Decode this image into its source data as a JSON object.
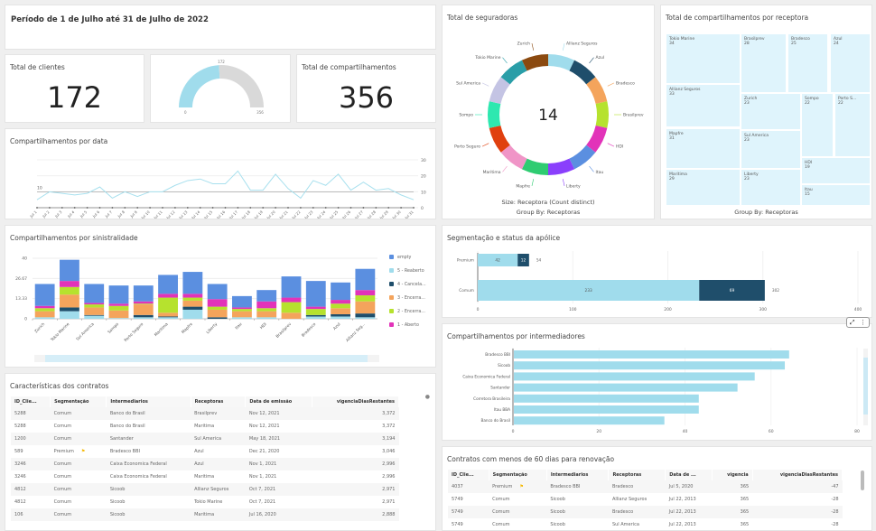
{
  "header": {
    "title": "Período  de 1 de Julho  até  31 de Julho de 2022"
  },
  "kpis": {
    "clientes_label": "Total de clientes",
    "clientes_value": "172",
    "compart_label": "Total de compartilhamentos",
    "compart_value": "356"
  },
  "gauge": {
    "value": 172,
    "max": 356,
    "value_label": "172",
    "min_label": "0",
    "max_label": "356",
    "fill_color": "#a0dcec",
    "rest_color": "#d9d9d9"
  },
  "chart_data": [
    {
      "id": "line",
      "type": "line",
      "title": "Compartilhamentos por data",
      "x": [
        "Jul 1",
        "Jul 2",
        "Jul 3",
        "Jul 4",
        "Jul 5",
        "Jul 6",
        "Jul 7",
        "Jul 8",
        "Jul 9",
        "Jul 10",
        "Jul 11",
        "Jul 12",
        "Jul 13",
        "Jul 14",
        "Jul 15",
        "Jul 16",
        "Jul 17",
        "Jul 18",
        "Jul 19",
        "Jul 20",
        "Jul 21",
        "Jul 22",
        "Jul 23",
        "Jul 24",
        "Jul 25",
        "Jul 26",
        "Jul 27",
        "Jul 28",
        "Jul 29",
        "Jul 30",
        "Jul 31"
      ],
      "values": [
        5,
        10,
        9,
        8,
        9,
        13,
        6,
        10,
        7,
        10,
        10,
        14,
        17,
        18,
        15,
        15,
        23,
        11,
        11,
        21,
        12,
        6,
        17,
        14,
        21,
        11,
        16,
        11,
        12,
        8,
        5
      ],
      "reference_line": {
        "value": 10,
        "label": "10"
      },
      "yticks": [
        0,
        10,
        20,
        30
      ],
      "ylim": [
        0,
        30
      ],
      "color": "#a8e0ee"
    },
    {
      "id": "donut",
      "type": "pie",
      "title": "Total de seguradoras",
      "center_label": "14",
      "footer": [
        "Size: Receptora (Count distinct)",
        "Group By: Receptoras"
      ],
      "categories": [
        "Allianz Seguros",
        "Azul",
        "Bradesco",
        "Brasilprev",
        "HDI",
        "Itau",
        "Liberty",
        "Mapfre",
        "Maritima",
        "Porto Seguro",
        "Sompo",
        "Sul America",
        "Tokio Marine",
        "Zurich"
      ],
      "values": [
        1,
        1,
        1,
        1,
        1,
        1,
        1,
        1,
        1,
        1,
        1,
        1,
        1,
        1
      ],
      "colors": [
        "#a0dcec",
        "#1f4e6b",
        "#f4a45c",
        "#b6e22e",
        "#e233b9",
        "#5b8fe0",
        "#8a3ffc",
        "#2ecc71",
        "#f095c7",
        "#e0400f",
        "#2ee8b0",
        "#c4c4e4",
        "#2a9ea8",
        "#8b4a10"
      ]
    },
    {
      "id": "treemap",
      "type": "treemap",
      "title": "Total de compartilhamentos por receptora",
      "footer": "Group By: Receptoras",
      "categories": [
        "Tokio Marine",
        "Brasilprev",
        "Bradesco",
        "Azul",
        "Allianz Seguros",
        "Zurich",
        "Sompo",
        "Porto S...",
        "Mapfre",
        "Sul America",
        "HDI",
        "Maritima",
        "Liberty",
        "Itau"
      ],
      "values": [
        34,
        28,
        25,
        24,
        33,
        23,
        22,
        22,
        31,
        23,
        19,
        29,
        23,
        15
      ]
    },
    {
      "id": "stacked",
      "type": "bar",
      "stacked": true,
      "title": "Compartilhamentos por sinistralidade",
      "categories": [
        "Zurich",
        "Tokio Marine",
        "Sul America",
        "Sompo",
        "Porto Seguro",
        "Maritima",
        "Mapfre",
        "Liberty",
        "Itau",
        "HDI",
        "Brasilprev",
        "Bradesco",
        "Azul",
        "Allianz Seg..."
      ],
      "yticks": [
        "0",
        "13.33",
        "26.67",
        "40"
      ],
      "ylim": [
        0,
        40
      ],
      "legend_position": "right",
      "series": [
        {
          "name": "5 - Reaberto",
          "color": "#a0dcec",
          "values": [
            1,
            5,
            2,
            0.5,
            1,
            1,
            6,
            0,
            1,
            1,
            0,
            1.5,
            1.5,
            1
          ]
        },
        {
          "name": "4 - Cancela...",
          "color": "#1f4e6b",
          "values": [
            0,
            2.5,
            0.5,
            0,
            1.5,
            0.5,
            2,
            1,
            0,
            0,
            0,
            1,
            1.5,
            2.5
          ]
        },
        {
          "name": "3 - Encerra...",
          "color": "#f4a45c",
          "values": [
            4,
            8.5,
            5,
            5,
            7,
            2.5,
            4,
            5,
            4,
            4,
            4,
            0,
            4,
            8
          ]
        },
        {
          "name": "2 - Encerra...",
          "color": "#b6e22e",
          "values": [
            2,
            5,
            2,
            3,
            0.5,
            10,
            2,
            2,
            1.5,
            2,
            7,
            4,
            3,
            4
          ]
        },
        {
          "name": "1 - Aberto",
          "color": "#e233b9",
          "values": [
            1.5,
            4,
            1,
            1.5,
            1.5,
            2.5,
            2.5,
            5,
            1,
            4.5,
            3,
            1.5,
            2.5,
            3.5
          ]
        },
        {
          "name": "empty",
          "color": "#5b8fe0",
          "values": [
            14.5,
            14,
            12.5,
            12,
            10.5,
            12.5,
            14.5,
            10,
            7.5,
            7.5,
            14,
            17,
            11.5,
            14
          ]
        }
      ],
      "legend_order": [
        "empty",
        "5 - Reaberto",
        "4 - Cancela...",
        "3 - Encerra...",
        "2 - Encerra...",
        "1 - Aberto"
      ]
    },
    {
      "id": "seg",
      "type": "bar",
      "orientation": "horizontal",
      "stacked": true,
      "title": "Segmentação e status da apólice",
      "categories": [
        "Premium",
        "Comum"
      ],
      "xticks": [
        0,
        100,
        200,
        300,
        400
      ],
      "xlim": [
        0,
        400
      ],
      "series": [
        {
          "color": "#a0dcec",
          "values": [
            42,
            233
          ]
        },
        {
          "color": "#1f4e6b",
          "values": [
            12,
            69
          ]
        }
      ],
      "totals": [
        54,
        302
      ]
    },
    {
      "id": "inter",
      "type": "bar",
      "orientation": "horizontal",
      "title": "Compartilhamentos por intermediadores",
      "categories": [
        "Bradesco BBI",
        "Sicoob",
        "Caixa Economica Federal",
        "Santander",
        "Corretora Brasileira",
        "Itau BBA",
        "Banco do Brasil"
      ],
      "values": [
        64,
        63,
        56,
        52,
        43,
        43,
        35
      ],
      "xticks": [
        0,
        20,
        40,
        60,
        80
      ],
      "xlim": [
        0,
        80
      ],
      "color": "#a0dcec"
    }
  ],
  "table1": {
    "title": "Características dos contratos",
    "columns": [
      "ID_Clie...",
      "Segmentação",
      "Intermediarios",
      "Receptoras",
      "Data de emissão",
      "vigenciaDiasRestantes"
    ],
    "rows": [
      [
        "5288",
        "Comum",
        "Banco do Brasil",
        "Brasilprev",
        "Nov 12, 2021",
        "3,372"
      ],
      [
        "5288",
        "Comum",
        "Banco do Brasil",
        "Maritima",
        "Nov 12, 2021",
        "3,372"
      ],
      [
        "1200",
        "Comum",
        "Santander",
        "Sul America",
        "May 18, 2021",
        "3,194"
      ],
      [
        "589",
        "Premium",
        "Bradesco BBI",
        "Azul",
        "Dec 21, 2020",
        "3,046"
      ],
      [
        "3246",
        "Comum",
        "Caixa Economica Federal",
        "Azul",
        "Nov 1, 2021",
        "2,996"
      ],
      [
        "3246",
        "Comum",
        "Caixa Economica Federal",
        "Maritima",
        "Nov 1, 2021",
        "2,996"
      ],
      [
        "4812",
        "Comum",
        "Sicoob",
        "Allianz Seguros",
        "Oct 7, 2021",
        "2,971"
      ],
      [
        "4812",
        "Comum",
        "Sicoob",
        "Tokio Marine",
        "Oct 7, 2021",
        "2,971"
      ],
      [
        "106",
        "Comum",
        "Sicoob",
        "Maritima",
        "Jul 16, 2020",
        "2,888"
      ]
    ]
  },
  "table2": {
    "title": "Contratos com menos de 60 dias para renovação",
    "columns": [
      "ID_Clie...",
      "Segmentação",
      "Intermediarios",
      "Receptoras",
      "Data de ...",
      "vigencia",
      "vigenciaDiasRestantes"
    ],
    "rows": [
      [
        "4037",
        "Premium",
        "Bradesco BBI",
        "Bradesco",
        "Jul 5, 2020",
        "365",
        "-47"
      ],
      [
        "5749",
        "Comum",
        "Sicoob",
        "Allianz Seguros",
        "Jul 22, 2013",
        "365",
        "-28"
      ],
      [
        "5749",
        "Comum",
        "Sicoob",
        "Bradesco",
        "Jul 22, 2013",
        "365",
        "-28"
      ],
      [
        "5749",
        "Comum",
        "Sicoob",
        "Sul America",
        "Jul 22, 2013",
        "365",
        "-28"
      ]
    ]
  }
}
